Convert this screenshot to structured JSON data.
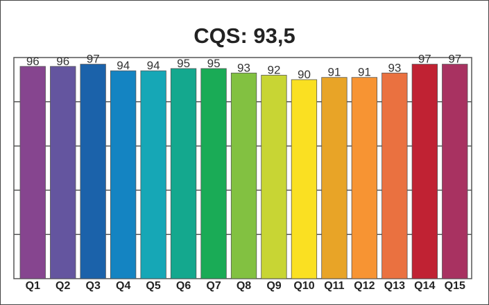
{
  "chart_data": {
    "type": "bar",
    "title": "CQS: 93,5",
    "categories": [
      "Q1",
      "Q2",
      "Q3",
      "Q4",
      "Q5",
      "Q6",
      "Q7",
      "Q8",
      "Q9",
      "Q10",
      "Q11",
      "Q12",
      "Q13",
      "Q14",
      "Q15"
    ],
    "values": [
      96,
      96,
      97,
      94,
      94,
      95,
      95,
      93,
      92,
      90,
      91,
      91,
      93,
      97,
      97
    ],
    "colors": [
      "#86458f",
      "#64559f",
      "#1b62aa",
      "#1484c2",
      "#16a7b6",
      "#14a88e",
      "#1aab56",
      "#82c141",
      "#c8d534",
      "#fae022",
      "#e8a427",
      "#f79433",
      "#ea7140",
      "#c02233",
      "#a83261"
    ],
    "ylim": [
      0,
      100
    ],
    "grid": true,
    "legend": "none",
    "xlabel": "",
    "ylabel": ""
  }
}
